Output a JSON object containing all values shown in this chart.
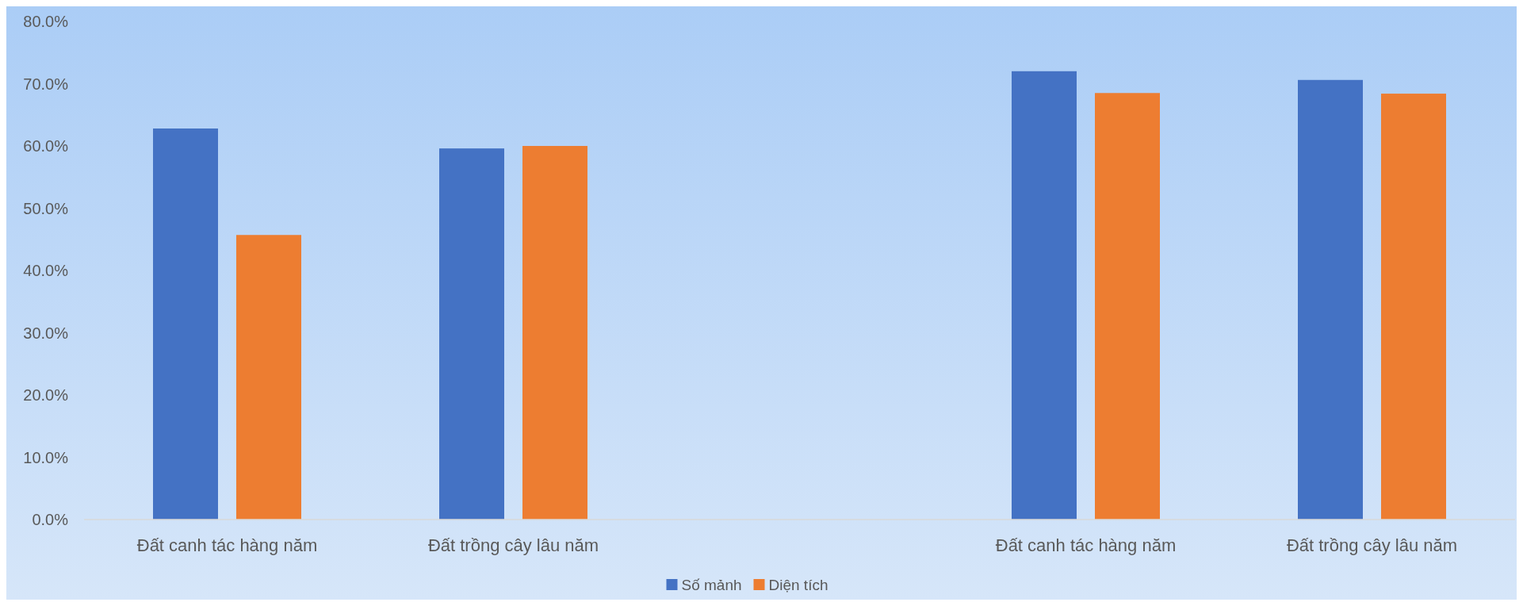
{
  "chart_data": {
    "type": "bar",
    "categories": [
      "Đất canh tác hàng năm",
      "Đất trồng cây lâu năm",
      null,
      "Đất canh tác hàng năm",
      "Đất trồng cây lâu năm"
    ],
    "series": [
      {
        "name": "Số mảnh",
        "color": "#4472c4",
        "values": [
          62.8,
          59.6,
          null,
          72.0,
          70.6
        ]
      },
      {
        "name": "Diện tích",
        "color": "#ed7d31",
        "values": [
          45.7,
          60.0,
          null,
          68.5,
          68.4
        ]
      }
    ],
    "ylim": [
      0,
      80
    ],
    "yticks": [
      {
        "value": 0,
        "label": "0.0%"
      },
      {
        "value": 10,
        "label": "10.0%"
      },
      {
        "value": 20,
        "label": "20.0%"
      },
      {
        "value": 30,
        "label": "30.0%"
      },
      {
        "value": 40,
        "label": "40.0%"
      },
      {
        "value": 50,
        "label": "50.0%"
      },
      {
        "value": 60,
        "label": "60.0%"
      },
      {
        "value": 70,
        "label": "70.0%"
      },
      {
        "value": 80,
        "label": "80.0%"
      }
    ],
    "grid": false,
    "legend": "bottom"
  }
}
